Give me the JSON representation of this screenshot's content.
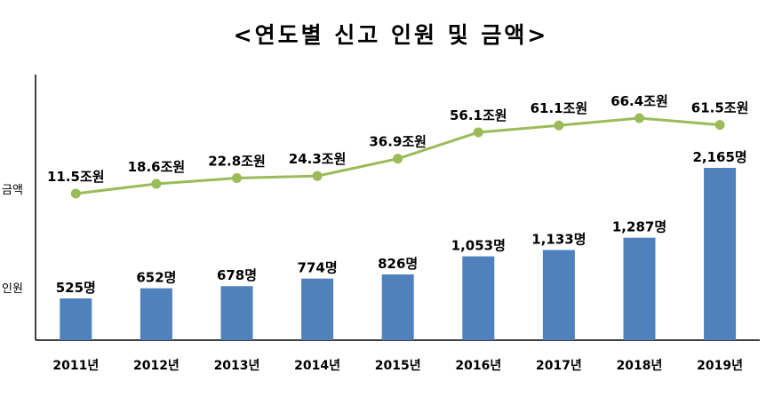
{
  "chart_data": {
    "type": "bar+line",
    "title": "<연도별 신고 인원 및 금액>",
    "categories": [
      "2011년",
      "2012년",
      "2013년",
      "2014년",
      "2015년",
      "2016년",
      "2017년",
      "2018년",
      "2019년"
    ],
    "series": [
      {
        "name": "인원",
        "type": "bar",
        "values": [
          525,
          652,
          678,
          774,
          826,
          1053,
          1133,
          1287,
          2165
        ],
        "labels": [
          "525명",
          "652명",
          "678명",
          "774명",
          "826명",
          "1,053명",
          "1,133명",
          "1,287명",
          "2,165명"
        ],
        "color": "#4F81BD"
      },
      {
        "name": "금액",
        "type": "line",
        "values": [
          11.5,
          18.6,
          22.8,
          24.3,
          36.9,
          56.1,
          61.1,
          66.4,
          61.5
        ],
        "labels": [
          "11.5조원",
          "18.6조원",
          "22.8조원",
          "24.3조원",
          "36.9조원",
          "56.1조원",
          "61.1조원",
          "66.4조원",
          "61.5조원"
        ],
        "color": "#9BBB59"
      }
    ],
    "axis_labels": {
      "upper": "금액",
      "lower": "인원"
    },
    "grid": false
  }
}
